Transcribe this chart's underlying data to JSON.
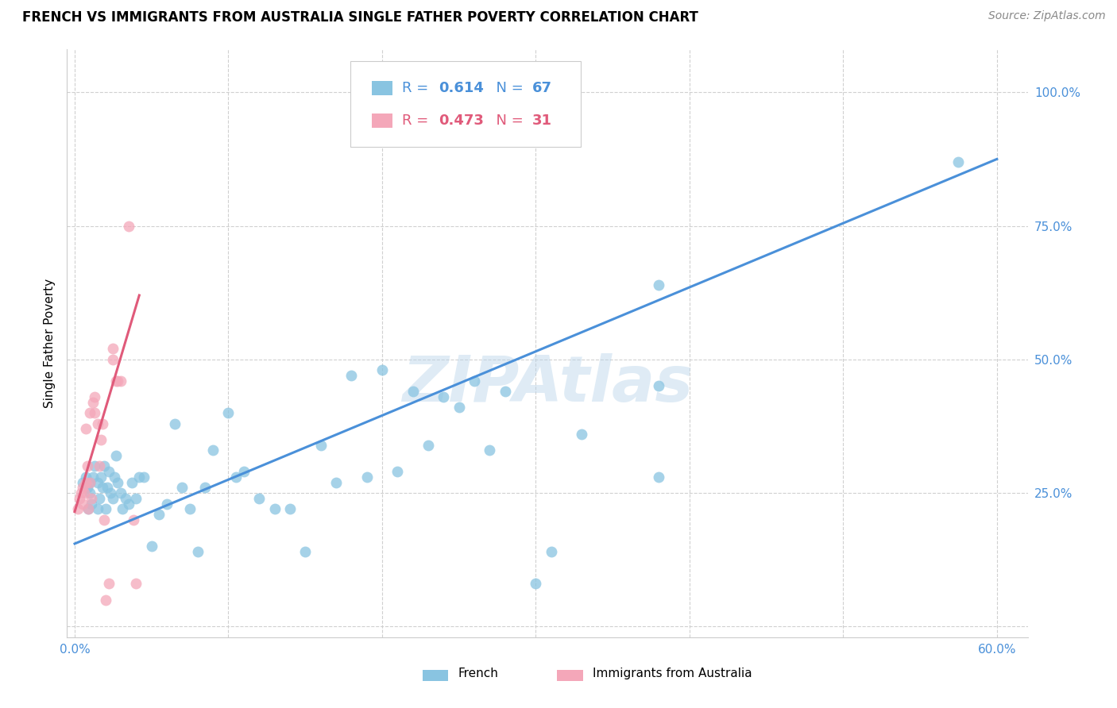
{
  "title": "FRENCH VS IMMIGRANTS FROM AUSTRALIA SINGLE FATHER POVERTY CORRELATION CHART",
  "source": "Source: ZipAtlas.com",
  "ylabel": "Single Father Poverty",
  "x_ticks": [
    0.0,
    0.1,
    0.2,
    0.3,
    0.4,
    0.5,
    0.6
  ],
  "x_tick_labels": [
    "0.0%",
    "",
    "",
    "",
    "",
    "",
    "60.0%"
  ],
  "y_ticks": [
    0.0,
    0.25,
    0.5,
    0.75,
    1.0
  ],
  "y_tick_labels": [
    "",
    "25.0%",
    "50.0%",
    "75.0%",
    "100.0%"
  ],
  "xlim": [
    -0.005,
    0.62
  ],
  "ylim": [
    -0.02,
    1.08
  ],
  "legend_labels": [
    "French",
    "Immigrants from Australia"
  ],
  "legend_R": [
    "0.614",
    "0.473"
  ],
  "legend_N": [
    "67",
    "31"
  ],
  "blue_color": "#89c4e1",
  "pink_color": "#f4a7b9",
  "blue_line_color": "#4a90d9",
  "pink_line_color": "#e05a7a",
  "watermark": "ZIPAtlas",
  "blue_scatter_x": [
    0.005,
    0.007,
    0.008,
    0.009,
    0.01,
    0.01,
    0.011,
    0.012,
    0.013,
    0.015,
    0.015,
    0.016,
    0.017,
    0.018,
    0.019,
    0.02,
    0.021,
    0.022,
    0.023,
    0.025,
    0.026,
    0.027,
    0.028,
    0.03,
    0.031,
    0.033,
    0.035,
    0.037,
    0.04,
    0.042,
    0.045,
    0.05,
    0.055,
    0.06,
    0.065,
    0.07,
    0.075,
    0.08,
    0.085,
    0.09,
    0.1,
    0.105,
    0.11,
    0.12,
    0.13,
    0.14,
    0.15,
    0.16,
    0.17,
    0.18,
    0.19,
    0.2,
    0.21,
    0.22,
    0.23,
    0.24,
    0.25,
    0.26,
    0.27,
    0.28,
    0.3,
    0.31,
    0.33,
    0.38,
    0.38,
    0.38,
    0.575
  ],
  "blue_scatter_y": [
    0.27,
    0.28,
    0.26,
    0.22,
    0.25,
    0.27,
    0.23,
    0.28,
    0.3,
    0.22,
    0.27,
    0.24,
    0.28,
    0.26,
    0.3,
    0.22,
    0.26,
    0.29,
    0.25,
    0.24,
    0.28,
    0.32,
    0.27,
    0.25,
    0.22,
    0.24,
    0.23,
    0.27,
    0.24,
    0.28,
    0.28,
    0.15,
    0.21,
    0.23,
    0.38,
    0.26,
    0.22,
    0.14,
    0.26,
    0.33,
    0.4,
    0.28,
    0.29,
    0.24,
    0.22,
    0.22,
    0.14,
    0.34,
    0.27,
    0.47,
    0.28,
    0.48,
    0.29,
    0.44,
    0.34,
    0.43,
    0.41,
    0.46,
    0.33,
    0.44,
    0.08,
    0.14,
    0.36,
    0.45,
    0.28,
    0.64,
    0.87
  ],
  "pink_scatter_x": [
    0.002,
    0.003,
    0.004,
    0.005,
    0.005,
    0.006,
    0.007,
    0.007,
    0.008,
    0.009,
    0.01,
    0.01,
    0.011,
    0.012,
    0.013,
    0.013,
    0.015,
    0.016,
    0.017,
    0.018,
    0.019,
    0.02,
    0.022,
    0.025,
    0.025,
    0.027,
    0.028,
    0.03,
    0.035,
    0.038,
    0.04
  ],
  "pink_scatter_y": [
    0.22,
    0.24,
    0.25,
    0.26,
    0.23,
    0.25,
    0.27,
    0.37,
    0.3,
    0.22,
    0.27,
    0.4,
    0.24,
    0.42,
    0.43,
    0.4,
    0.38,
    0.3,
    0.35,
    0.38,
    0.2,
    0.05,
    0.08,
    0.5,
    0.52,
    0.46,
    0.46,
    0.46,
    0.75,
    0.2,
    0.08
  ],
  "blue_trend_x": [
    0.0,
    0.6
  ],
  "blue_trend_y": [
    0.155,
    0.875
  ],
  "pink_trend_x": [
    0.0,
    0.042
  ],
  "pink_trend_y": [
    0.215,
    0.62
  ],
  "background_color": "#ffffff",
  "grid_color": "#d0d0d0",
  "tick_color": "#4a90d9",
  "title_fontsize": 12,
  "source_fontsize": 10,
  "axis_label_fontsize": 11,
  "tick_fontsize": 11,
  "legend_fontsize": 13
}
